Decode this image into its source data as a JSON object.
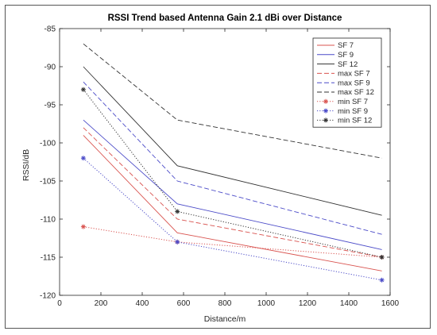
{
  "chart_data": {
    "type": "line",
    "title": "RSSI Trend based Antenna Gain 2.1 dBi over Distance",
    "xlabel": "Distance/m",
    "ylabel": "RSSI/dB",
    "xlim": [
      0,
      1600
    ],
    "ylim": [
      -120,
      -85
    ],
    "xticks": [
      0,
      200,
      400,
      600,
      800,
      1000,
      1200,
      1400,
      1600
    ],
    "yticks": [
      -120,
      -115,
      -110,
      -105,
      -100,
      -95,
      -90,
      -85
    ],
    "xtick_labels": [
      "0",
      "200",
      "400",
      "600",
      "800",
      "1000",
      "1200",
      "1400",
      "1600"
    ],
    "ytick_labels": [
      "-120",
      "-115",
      "-110",
      "-105",
      "-100",
      "-95",
      "-90",
      "-85"
    ],
    "grid": false,
    "legend_position": "top-right",
    "x": [
      115,
      570,
      1560
    ],
    "series": [
      {
        "name": "SF 7",
        "values": [
          -99,
          -111.8,
          -116.8
        ],
        "color": "#d9534f",
        "style": "solid"
      },
      {
        "name": "SF 9",
        "values": [
          -97,
          -108,
          -114
        ],
        "color": "#4a4ac8",
        "style": "solid"
      },
      {
        "name": "SF 12",
        "values": [
          -90,
          -103,
          -109.5
        ],
        "color": "#333333",
        "style": "solid"
      },
      {
        "name": "max SF 7",
        "values": [
          -98,
          -110,
          -115
        ],
        "color": "#d9534f",
        "style": "dashed"
      },
      {
        "name": "max SF 9",
        "values": [
          -92,
          -105,
          -112
        ],
        "color": "#4a4ac8",
        "style": "dashed"
      },
      {
        "name": "max SF 12",
        "values": [
          -87,
          -97,
          -102
        ],
        "color": "#333333",
        "style": "dashed"
      },
      {
        "name": "min SF 7",
        "values": [
          -111,
          -113,
          -115
        ],
        "color": "#d9534f",
        "style": "dotted",
        "marker": "*"
      },
      {
        "name": "min SF 9",
        "values": [
          -102,
          -113,
          -118
        ],
        "color": "#4a4ac8",
        "style": "dotted",
        "marker": "*"
      },
      {
        "name": "min SF 12",
        "values": [
          -93,
          -109,
          -115
        ],
        "color": "#333333",
        "style": "dotted",
        "marker": "*"
      }
    ]
  }
}
